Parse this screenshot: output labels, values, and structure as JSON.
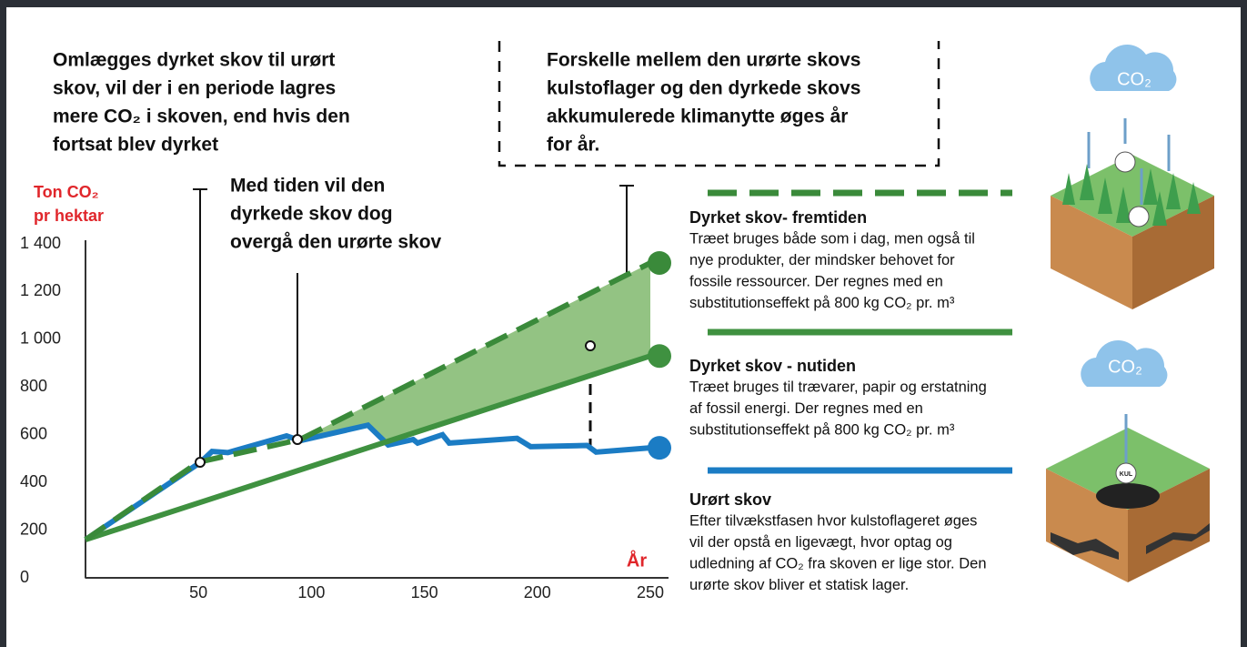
{
  "chart_data": {
    "type": "line",
    "annotations": [
      {
        "lines": [
          "Omlægges dyrket skov til urørt",
          "skov, vil der i en periode lagres",
          "mere CO₂ i skoven, end hvis den",
          "fortsat blev dyrket"
        ]
      },
      {
        "lines": [
          "Med tiden vil den",
          "dyrkede skov dog",
          "overgå den urørte skov"
        ]
      },
      {
        "lines": [
          "Forskelle mellem den urørte skovs",
          "kulstoflager og den dyrkede skovs",
          "akkumulerede klimanytte øges år",
          "for år."
        ]
      }
    ],
    "ylabel": [
      "Ton CO₂",
      "pr hektar"
    ],
    "xlabel": "År",
    "xlim": [
      0,
      250
    ],
    "xticks": [
      50,
      100,
      150,
      200,
      250
    ],
    "ylim": [
      0,
      1400
    ],
    "yticks": [
      0,
      200,
      400,
      600,
      800,
      {
        "value": 1000,
        "label": "1 000"
      },
      {
        "value": 1200,
        "label": "1 200"
      },
      {
        "value": 1400,
        "label": "1 400"
      }
    ],
    "series": [
      {
        "name": "Dyrket skov- fremtiden",
        "color": "#3a8a3a",
        "dashed": true,
        "description": [
          "Træet bruges både som i dag, men også til",
          "nye produkter, der mindsker behovet for",
          "fossile ressourcer. Der regnes med en",
          "substitutionseffekt på 800 kg CO₂ pr. m³"
        ],
        "x": [
          0,
          50,
          95,
          250
        ],
        "values": [
          160,
          485,
          580,
          1320
        ]
      },
      {
        "name": "Dyrket skov - nutiden",
        "color": "#3f9140",
        "dashed": false,
        "description": [
          "Træet bruges til trævarer, papir og erstatning",
          "af fossil energi. Der regnes med en",
          "substitutionseffekt på 800 kg CO₂ pr. m³"
        ],
        "x": [
          0,
          250
        ],
        "values": [
          160,
          930
        ]
      },
      {
        "name": "Urørt skov",
        "color": "#1b7cc4",
        "dashed": false,
        "description": [
          "Efter tilvækstfasen hvor kulstoflageret øges",
          "vil der opstå en ligevægt, hvor optag og",
          "udledning af CO₂ fra skoven er lige stor. Den",
          "urørte skov bliver et statisk lager."
        ],
        "x": [
          0,
          51,
          56,
          63,
          89,
          95,
          125,
          134,
          145,
          147,
          158,
          161,
          191,
          197,
          222,
          226,
          250
        ],
        "values": [
          160,
          485,
          530,
          525,
          595,
          575,
          640,
          557,
          580,
          565,
          600,
          565,
          585,
          550,
          555,
          527,
          545
        ]
      }
    ],
    "icons": {
      "cloud_top": "CO₂",
      "cloud_bottom": "CO₂",
      "coal": "KUL"
    }
  }
}
